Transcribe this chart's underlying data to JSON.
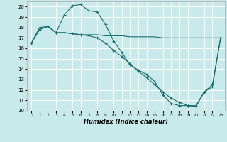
{
  "xlabel": "Humidex (Indice chaleur)",
  "xlim": [
    -0.5,
    23.5
  ],
  "ylim": [
    10,
    20.5
  ],
  "yticks": [
    10,
    11,
    12,
    13,
    14,
    15,
    16,
    17,
    18,
    19,
    20
  ],
  "xticks": [
    0,
    1,
    2,
    3,
    4,
    5,
    6,
    7,
    8,
    9,
    10,
    11,
    12,
    13,
    14,
    15,
    16,
    17,
    18,
    19,
    20,
    21,
    22,
    23
  ],
  "bg_color": "#c8eaea",
  "line_color": "#1a6b6b",
  "grid_color": "#ffffff",
  "series1_x": [
    0,
    1,
    2,
    3,
    4,
    5,
    6,
    7,
    8,
    9,
    10,
    11,
    12,
    13,
    14,
    15,
    16,
    17,
    18,
    19,
    20,
    21,
    22,
    23
  ],
  "series1_y": [
    16.5,
    18.0,
    18.1,
    17.5,
    19.2,
    20.1,
    20.2,
    19.6,
    19.5,
    18.3,
    16.7,
    15.6,
    14.4,
    13.9,
    13.5,
    12.8,
    11.5,
    10.7,
    10.5,
    10.5,
    10.4,
    11.8,
    12.5,
    17.0
  ],
  "series2_x": [
    0,
    1,
    2,
    3,
    4,
    5,
    6,
    7,
    8,
    9,
    10,
    11,
    12,
    13,
    14,
    15,
    16,
    17,
    18,
    19,
    20,
    21,
    22,
    23
  ],
  "series2_y": [
    16.5,
    17.8,
    18.1,
    17.5,
    17.5,
    17.4,
    17.3,
    17.3,
    17.3,
    17.2,
    17.2,
    17.2,
    17.1,
    17.1,
    17.1,
    17.1,
    17.0,
    17.0,
    17.0,
    17.0,
    17.0,
    17.0,
    17.0,
    17.0
  ],
  "series3_x": [
    0,
    1,
    2,
    3,
    4,
    5,
    6,
    7,
    8,
    9,
    10,
    11,
    12,
    13,
    14,
    15,
    16,
    17,
    18,
    19,
    20,
    21,
    22,
    23
  ],
  "series3_y": [
    16.5,
    17.8,
    18.1,
    17.5,
    17.5,
    17.4,
    17.3,
    17.2,
    17.0,
    16.5,
    15.8,
    15.2,
    14.5,
    13.8,
    13.2,
    12.5,
    11.8,
    11.2,
    10.8,
    10.5,
    10.5,
    11.8,
    12.3,
    17.0
  ]
}
